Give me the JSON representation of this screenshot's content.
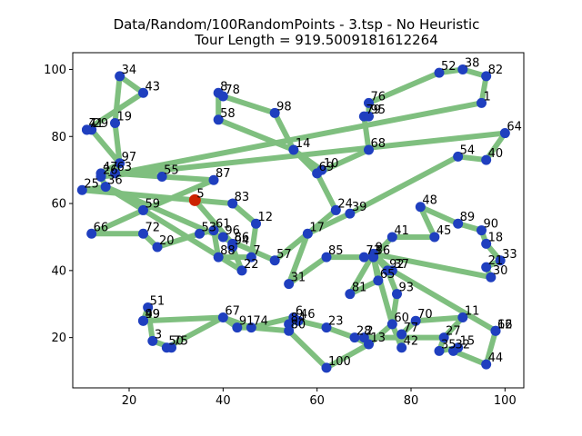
{
  "chart_data": {
    "type": "scatter",
    "title_line1": "Data/Random/100RandomPoints - 3.tsp - No Heuristic",
    "title_line2": "Tour Length = 919.5009181612264",
    "xlim": [
      8,
      104
    ],
    "ylim": [
      5,
      105
    ],
    "xticks": [
      20,
      40,
      60,
      80,
      100
    ],
    "yticks": [
      20,
      40,
      60,
      80,
      100
    ],
    "grid": false,
    "colors": {
      "route": "#7fbf7f",
      "point": "#1f3fbf",
      "start": "#cc2200"
    },
    "start_id": "5",
    "points": [
      {
        "id": "1",
        "x": 95,
        "y": 90
      },
      {
        "id": "2",
        "x": 70,
        "y": 20
      },
      {
        "id": "3",
        "x": 25,
        "y": 19
      },
      {
        "id": "4",
        "x": 11,
        "y": 82
      },
      {
        "id": "5",
        "x": 34,
        "y": 61
      },
      {
        "id": "6",
        "x": 55,
        "y": 26
      },
      {
        "id": "7",
        "x": 46,
        "y": 44
      },
      {
        "id": "8",
        "x": 39,
        "y": 93
      },
      {
        "id": "9",
        "x": 72,
        "y": 45
      },
      {
        "id": "10",
        "x": 61,
        "y": 70
      },
      {
        "id": "11",
        "x": 91,
        "y": 26
      },
      {
        "id": "12",
        "x": 47,
        "y": 54
      },
      {
        "id": "13",
        "x": 71,
        "y": 18
      },
      {
        "id": "14",
        "x": 55,
        "y": 76
      },
      {
        "id": "15",
        "x": 90,
        "y": 17
      },
      {
        "id": "16",
        "x": 98,
        "y": 22
      },
      {
        "id": "17",
        "x": 58,
        "y": 51
      },
      {
        "id": "18",
        "x": 96,
        "y": 48
      },
      {
        "id": "19",
        "x": 17,
        "y": 84
      },
      {
        "id": "20",
        "x": 26,
        "y": 47
      },
      {
        "id": "21",
        "x": 96,
        "y": 41
      },
      {
        "id": "22",
        "x": 44,
        "y": 40
      },
      {
        "id": "23",
        "x": 62,
        "y": 23
      },
      {
        "id": "24",
        "x": 64,
        "y": 58
      },
      {
        "id": "25",
        "x": 10,
        "y": 64
      },
      {
        "id": "26",
        "x": 14,
        "y": 68
      },
      {
        "id": "27",
        "x": 87,
        "y": 20
      },
      {
        "id": "28",
        "x": 68,
        "y": 20
      },
      {
        "id": "29",
        "x": 12,
        "y": 82
      },
      {
        "id": "30",
        "x": 97,
        "y": 38
      },
      {
        "id": "31",
        "x": 54,
        "y": 36
      },
      {
        "id": "32",
        "x": 89,
        "y": 16
      },
      {
        "id": "33",
        "x": 99,
        "y": 43
      },
      {
        "id": "34",
        "x": 18,
        "y": 98
      },
      {
        "id": "35",
        "x": 86,
        "y": 16
      },
      {
        "id": "36",
        "x": 15,
        "y": 65
      },
      {
        "id": "37",
        "x": 76,
        "y": 40
      },
      {
        "id": "38",
        "x": 91,
        "y": 100
      },
      {
        "id": "39",
        "x": 67,
        "y": 57
      },
      {
        "id": "40",
        "x": 96,
        "y": 73
      },
      {
        "id": "41",
        "x": 76,
        "y": 50
      },
      {
        "id": "42",
        "x": 78,
        "y": 17
      },
      {
        "id": "43",
        "x": 23,
        "y": 93
      },
      {
        "id": "44",
        "x": 96,
        "y": 12
      },
      {
        "id": "45",
        "x": 85,
        "y": 50
      },
      {
        "id": "46",
        "x": 56,
        "y": 25
      },
      {
        "id": "47",
        "x": 14,
        "y": 69
      },
      {
        "id": "48",
        "x": 82,
        "y": 59
      },
      {
        "id": "49",
        "x": 23,
        "y": 25
      },
      {
        "id": "50",
        "x": 28,
        "y": 17
      },
      {
        "id": "51",
        "x": 24,
        "y": 29
      },
      {
        "id": "52",
        "x": 86,
        "y": 99
      },
      {
        "id": "53",
        "x": 35,
        "y": 51
      },
      {
        "id": "54",
        "x": 90,
        "y": 74
      },
      {
        "id": "55",
        "x": 27,
        "y": 68
      },
      {
        "id": "56",
        "x": 72,
        "y": 44
      },
      {
        "id": "57",
        "x": 51,
        "y": 43
      },
      {
        "id": "58",
        "x": 39,
        "y": 85
      },
      {
        "id": "59",
        "x": 23,
        "y": 58
      },
      {
        "id": "60",
        "x": 76,
        "y": 24
      },
      {
        "id": "61",
        "x": 38,
        "y": 52
      },
      {
        "id": "62",
        "x": 98,
        "y": 22
      },
      {
        "id": "63",
        "x": 17,
        "y": 69
      },
      {
        "id": "64",
        "x": 100,
        "y": 81
      },
      {
        "id": "65",
        "x": 73,
        "y": 37
      },
      {
        "id": "66",
        "x": 12,
        "y": 51
      },
      {
        "id": "67",
        "x": 40,
        "y": 26
      },
      {
        "id": "68",
        "x": 71,
        "y": 76
      },
      {
        "id": "69",
        "x": 60,
        "y": 69
      },
      {
        "id": "70",
        "x": 81,
        "y": 25
      },
      {
        "id": "71",
        "x": 11,
        "y": 82
      },
      {
        "id": "72",
        "x": 23,
        "y": 51
      },
      {
        "id": "73",
        "x": 70,
        "y": 44
      },
      {
        "id": "74",
        "x": 46,
        "y": 23
      },
      {
        "id": "75",
        "x": 29,
        "y": 17
      },
      {
        "id": "76",
        "x": 71,
        "y": 90
      },
      {
        "id": "77",
        "x": 78,
        "y": 21
      },
      {
        "id": "78",
        "x": 40,
        "y": 92
      },
      {
        "id": "79",
        "x": 70,
        "y": 86
      },
      {
        "id": "80",
        "x": 54,
        "y": 22
      },
      {
        "id": "81",
        "x": 67,
        "y": 33
      },
      {
        "id": "82",
        "x": 96,
        "y": 98
      },
      {
        "id": "83",
        "x": 42,
        "y": 60
      },
      {
        "id": "84",
        "x": 54,
        "y": 24
      },
      {
        "id": "85",
        "x": 62,
        "y": 44
      },
      {
        "id": "86",
        "x": 42,
        "y": 48
      },
      {
        "id": "87",
        "x": 38,
        "y": 67
      },
      {
        "id": "88",
        "x": 39,
        "y": 44
      },
      {
        "id": "89",
        "x": 90,
        "y": 54
      },
      {
        "id": "90",
        "x": 95,
        "y": 52
      },
      {
        "id": "91",
        "x": 43,
        "y": 23
      },
      {
        "id": "92",
        "x": 75,
        "y": 40
      },
      {
        "id": "93",
        "x": 77,
        "y": 33
      },
      {
        "id": "94",
        "x": 42,
        "y": 47
      },
      {
        "id": "95",
        "x": 71,
        "y": 86
      },
      {
        "id": "96",
        "x": 40,
        "y": 50
      },
      {
        "id": "97",
        "x": 18,
        "y": 72
      },
      {
        "id": "98",
        "x": 51,
        "y": 87
      },
      {
        "id": "99",
        "x": 23,
        "y": 25
      },
      {
        "id": "100",
        "x": 62,
        "y": 11
      }
    ],
    "route": [
      "5",
      "83",
      "12",
      "7",
      "88",
      "61",
      "53",
      "20",
      "72",
      "66",
      "59",
      "87",
      "55",
      "63",
      "97",
      "19",
      "34",
      "43",
      "71",
      "4",
      "29",
      "97",
      "47",
      "26",
      "36",
      "25",
      "5",
      "86",
      "94",
      "22",
      "36",
      "57",
      "17",
      "39",
      "54",
      "40",
      "64",
      "26",
      "1",
      "82",
      "38",
      "52",
      "76",
      "95",
      "79",
      "68",
      "69",
      "10",
      "14",
      "98",
      "78",
      "8",
      "58",
      "14",
      "69",
      "24",
      "17",
      "31",
      "85",
      "73",
      "56",
      "65",
      "81",
      "9",
      "37",
      "92",
      "93",
      "60",
      "42",
      "77",
      "70",
      "11",
      "27",
      "2",
      "13",
      "28",
      "23",
      "46",
      "84",
      "80",
      "6",
      "74",
      "91",
      "67",
      "49",
      "99",
      "51",
      "3",
      "75",
      "50",
      "67",
      "74",
      "80",
      "100",
      "13",
      "60",
      "56",
      "41",
      "45",
      "48",
      "89",
      "90",
      "18",
      "33",
      "21",
      "30",
      "9",
      "92",
      "37",
      "62",
      "16",
      "44",
      "32",
      "15",
      "35",
      "27"
    ]
  }
}
